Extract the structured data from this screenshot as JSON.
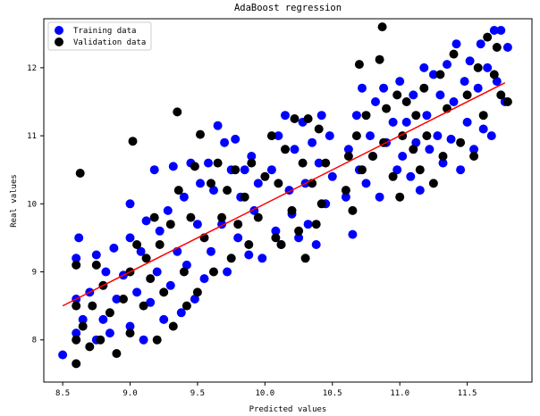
{
  "chart_data": {
    "type": "scatter",
    "title": "AdaBoost regression",
    "xlabel": "Predicted values",
    "ylabel": "Real values",
    "xlim": [
      8.36,
      11.98
    ],
    "ylim": [
      7.38,
      12.72
    ],
    "xticks": [
      "8.5",
      "9.0",
      "9.5",
      "10.0",
      "10.5",
      "11.0",
      "11.5"
    ],
    "yticks": [
      "8",
      "9",
      "10",
      "11",
      "12"
    ],
    "grid": false,
    "legend_position": "top-left",
    "series": [
      {
        "name": "Training data",
        "color": "#0000ff",
        "points": [
          [
            8.5,
            7.78
          ],
          [
            8.6,
            8.1
          ],
          [
            8.6,
            8.6
          ],
          [
            8.6,
            9.2
          ],
          [
            8.62,
            9.5
          ],
          [
            8.65,
            8.3
          ],
          [
            8.7,
            8.7
          ],
          [
            8.75,
            8.0
          ],
          [
            8.75,
            9.25
          ],
          [
            8.8,
            8.3
          ],
          [
            8.82,
            9.0
          ],
          [
            8.85,
            8.1
          ],
          [
            8.88,
            9.35
          ],
          [
            8.9,
            8.6
          ],
          [
            8.95,
            8.95
          ],
          [
            9.0,
            8.2
          ],
          [
            9.0,
            9.5
          ],
          [
            9.0,
            10.0
          ],
          [
            9.05,
            8.7
          ],
          [
            9.08,
            9.3
          ],
          [
            9.1,
            8.0
          ],
          [
            9.12,
            9.75
          ],
          [
            9.15,
            8.55
          ],
          [
            9.18,
            10.5
          ],
          [
            9.2,
            9.0
          ],
          [
            9.22,
            9.6
          ],
          [
            9.25,
            8.3
          ],
          [
            9.28,
            9.9
          ],
          [
            9.3,
            8.8
          ],
          [
            9.32,
            10.55
          ],
          [
            9.35,
            9.3
          ],
          [
            9.38,
            8.4
          ],
          [
            9.4,
            10.1
          ],
          [
            9.42,
            9.1
          ],
          [
            9.45,
            10.6
          ],
          [
            9.48,
            8.6
          ],
          [
            9.5,
            9.7
          ],
          [
            9.52,
            10.3
          ],
          [
            9.55,
            8.9
          ],
          [
            9.58,
            10.6
          ],
          [
            9.6,
            9.3
          ],
          [
            9.62,
            10.2
          ],
          [
            9.65,
            11.15
          ],
          [
            9.68,
            9.7
          ],
          [
            9.7,
            10.9
          ],
          [
            9.72,
            9.0
          ],
          [
            9.75,
            10.5
          ],
          [
            9.78,
            10.95
          ],
          [
            9.8,
            9.5
          ],
          [
            9.82,
            10.1
          ],
          [
            9.85,
            10.5
          ],
          [
            9.88,
            9.25
          ],
          [
            9.9,
            10.7
          ],
          [
            9.92,
            9.9
          ],
          [
            9.95,
            10.3
          ],
          [
            9.98,
            9.2
          ],
          [
            10.05,
            10.5
          ],
          [
            10.08,
            9.6
          ],
          [
            10.1,
            11.0
          ],
          [
            10.12,
            9.4
          ],
          [
            10.15,
            11.3
          ],
          [
            10.18,
            10.2
          ],
          [
            10.2,
            9.85
          ],
          [
            10.22,
            10.8
          ],
          [
            10.25,
            9.5
          ],
          [
            10.28,
            11.2
          ],
          [
            10.3,
            10.3
          ],
          [
            10.32,
            9.7
          ],
          [
            10.35,
            10.9
          ],
          [
            10.38,
            9.4
          ],
          [
            10.4,
            10.6
          ],
          [
            10.42,
            11.3
          ],
          [
            10.45,
            10.0
          ],
          [
            10.48,
            11.0
          ],
          [
            10.5,
            10.4
          ],
          [
            10.6,
            10.1
          ],
          [
            10.62,
            10.8
          ],
          [
            10.65,
            9.55
          ],
          [
            10.68,
            11.3
          ],
          [
            10.7,
            10.5
          ],
          [
            10.72,
            11.7
          ],
          [
            10.75,
            10.3
          ],
          [
            10.78,
            11.0
          ],
          [
            10.8,
            10.7
          ],
          [
            10.82,
            11.5
          ],
          [
            10.85,
            10.1
          ],
          [
            10.88,
            11.7
          ],
          [
            10.9,
            10.9
          ],
          [
            10.95,
            11.2
          ],
          [
            10.98,
            10.5
          ],
          [
            11.0,
            11.8
          ],
          [
            11.02,
            10.7
          ],
          [
            11.05,
            11.2
          ],
          [
            11.08,
            10.4
          ],
          [
            11.1,
            11.6
          ],
          [
            11.12,
            10.9
          ],
          [
            11.15,
            10.2
          ],
          [
            11.18,
            12.0
          ],
          [
            11.2,
            11.3
          ],
          [
            11.22,
            10.8
          ],
          [
            11.25,
            11.9
          ],
          [
            11.28,
            11.0
          ],
          [
            11.3,
            11.6
          ],
          [
            11.32,
            10.6
          ],
          [
            11.35,
            12.05
          ],
          [
            11.38,
            10.95
          ],
          [
            11.4,
            11.5
          ],
          [
            11.42,
            12.35
          ],
          [
            11.45,
            10.5
          ],
          [
            11.48,
            11.8
          ],
          [
            11.5,
            11.2
          ],
          [
            11.52,
            12.1
          ],
          [
            11.55,
            10.8
          ],
          [
            11.58,
            11.7
          ],
          [
            11.6,
            12.35
          ],
          [
            11.62,
            11.1
          ],
          [
            11.65,
            12.0
          ],
          [
            11.68,
            11.0
          ],
          [
            11.7,
            12.55
          ],
          [
            11.72,
            11.8
          ],
          [
            11.75,
            12.55
          ],
          [
            11.78,
            11.5
          ],
          [
            11.8,
            12.3
          ]
        ]
      },
      {
        "name": "Validation data",
        "color": "#000000",
        "points": [
          [
            8.6,
            7.65
          ],
          [
            8.6,
            8.0
          ],
          [
            8.6,
            8.5
          ],
          [
            8.6,
            9.1
          ],
          [
            8.63,
            10.45
          ],
          [
            8.65,
            8.2
          ],
          [
            8.7,
            7.9
          ],
          [
            8.72,
            8.5
          ],
          [
            8.75,
            9.1
          ],
          [
            8.78,
            8.0
          ],
          [
            8.8,
            8.8
          ],
          [
            8.85,
            8.4
          ],
          [
            8.9,
            7.8
          ],
          [
            8.95,
            8.6
          ],
          [
            9.0,
            8.1
          ],
          [
            9.0,
            9.0
          ],
          [
            9.02,
            10.92
          ],
          [
            9.05,
            9.4
          ],
          [
            9.1,
            8.5
          ],
          [
            9.12,
            9.2
          ],
          [
            9.15,
            8.9
          ],
          [
            9.18,
            9.8
          ],
          [
            9.2,
            8.0
          ],
          [
            9.22,
            9.4
          ],
          [
            9.25,
            8.7
          ],
          [
            9.3,
            9.7
          ],
          [
            9.32,
            8.2
          ],
          [
            9.35,
            11.35
          ],
          [
            9.36,
            10.2
          ],
          [
            9.4,
            9.0
          ],
          [
            9.42,
            8.5
          ],
          [
            9.45,
            9.8
          ],
          [
            9.48,
            10.55
          ],
          [
            9.5,
            8.7
          ],
          [
            9.52,
            11.02
          ],
          [
            9.55,
            9.5
          ],
          [
            9.6,
            10.3
          ],
          [
            9.62,
            9.0
          ],
          [
            9.65,
            10.6
          ],
          [
            9.68,
            9.8
          ],
          [
            9.72,
            10.2
          ],
          [
            9.75,
            9.2
          ],
          [
            9.78,
            10.5
          ],
          [
            9.8,
            9.7
          ],
          [
            9.85,
            10.1
          ],
          [
            9.88,
            9.4
          ],
          [
            9.9,
            10.6
          ],
          [
            9.95,
            9.8
          ],
          [
            10.0,
            10.4
          ],
          [
            10.05,
            11.0
          ],
          [
            10.08,
            9.5
          ],
          [
            10.1,
            10.3
          ],
          [
            10.12,
            9.4
          ],
          [
            10.15,
            10.8
          ],
          [
            10.2,
            9.9
          ],
          [
            10.22,
            11.25
          ],
          [
            10.25,
            9.6
          ],
          [
            10.28,
            10.6
          ],
          [
            10.3,
            9.2
          ],
          [
            10.32,
            11.25
          ],
          [
            10.35,
            10.3
          ],
          [
            10.38,
            9.7
          ],
          [
            10.4,
            11.1
          ],
          [
            10.42,
            10.0
          ],
          [
            10.45,
            10.6
          ],
          [
            10.6,
            10.2
          ],
          [
            10.62,
            10.7
          ],
          [
            10.65,
            9.9
          ],
          [
            10.68,
            11.0
          ],
          [
            10.7,
            12.05
          ],
          [
            10.72,
            10.5
          ],
          [
            10.75,
            11.3
          ],
          [
            10.8,
            10.7
          ],
          [
            10.85,
            12.12
          ],
          [
            10.87,
            12.6
          ],
          [
            10.88,
            10.9
          ],
          [
            10.9,
            11.4
          ],
          [
            10.95,
            10.4
          ],
          [
            10.98,
            11.6
          ],
          [
            11.0,
            10.1
          ],
          [
            11.02,
            11.0
          ],
          [
            11.05,
            11.5
          ],
          [
            11.1,
            10.8
          ],
          [
            11.12,
            11.3
          ],
          [
            11.15,
            10.5
          ],
          [
            11.18,
            11.7
          ],
          [
            11.2,
            11.0
          ],
          [
            11.25,
            10.3
          ],
          [
            11.3,
            11.9
          ],
          [
            11.32,
            10.7
          ],
          [
            11.35,
            11.4
          ],
          [
            11.4,
            12.2
          ],
          [
            11.45,
            10.9
          ],
          [
            11.5,
            11.6
          ],
          [
            11.55,
            10.7
          ],
          [
            11.58,
            12.0
          ],
          [
            11.62,
            11.3
          ],
          [
            11.65,
            12.45
          ],
          [
            11.7,
            11.9
          ],
          [
            11.72,
            12.3
          ],
          [
            11.75,
            11.6
          ],
          [
            11.8,
            11.5
          ]
        ]
      }
    ],
    "fit_line": {
      "color": "#ff0000",
      "points": [
        [
          8.5,
          8.5
        ],
        [
          11.78,
          11.78
        ]
      ]
    }
  }
}
